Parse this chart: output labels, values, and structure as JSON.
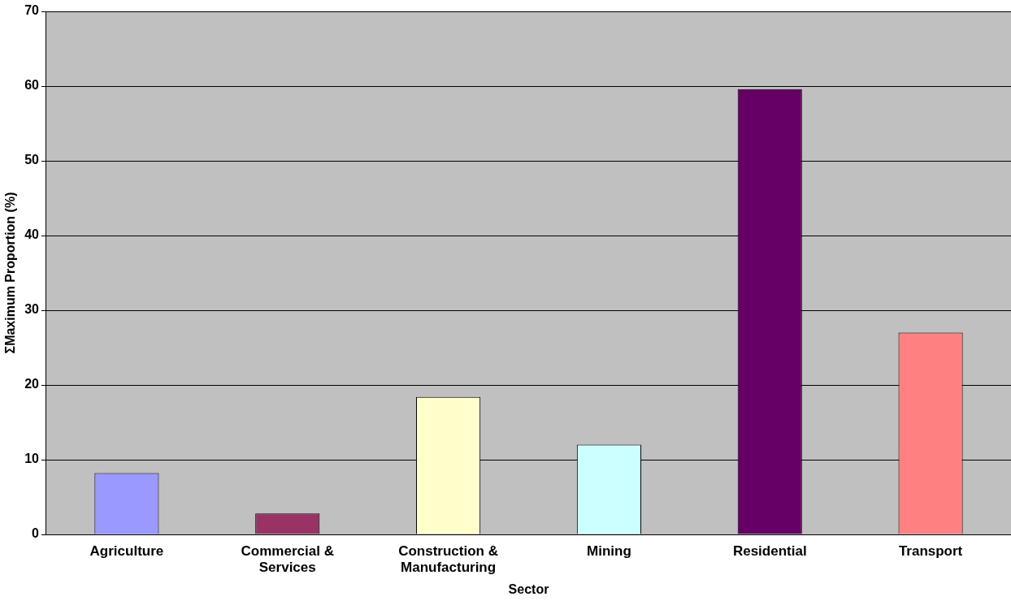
{
  "chart_data": {
    "type": "bar",
    "xlabel": "Sector",
    "ylabel": "ΣMaximum Proportion (%)",
    "categories": [
      "Agriculture",
      "Commercial & Services",
      "Construction & Manufacturing",
      "Mining",
      "Residential",
      "Transport"
    ],
    "values": [
      8.2,
      2.8,
      18.4,
      12.0,
      59.6,
      27.0
    ],
    "colors": [
      "#9999ff",
      "#993366",
      "#ffffcc",
      "#ccffff",
      "#660066",
      "#ff8080"
    ],
    "ylim": [
      0,
      70
    ],
    "yticks": [
      0,
      10,
      20,
      30,
      40,
      50,
      60,
      70
    ],
    "grid": "y",
    "legend": false
  }
}
